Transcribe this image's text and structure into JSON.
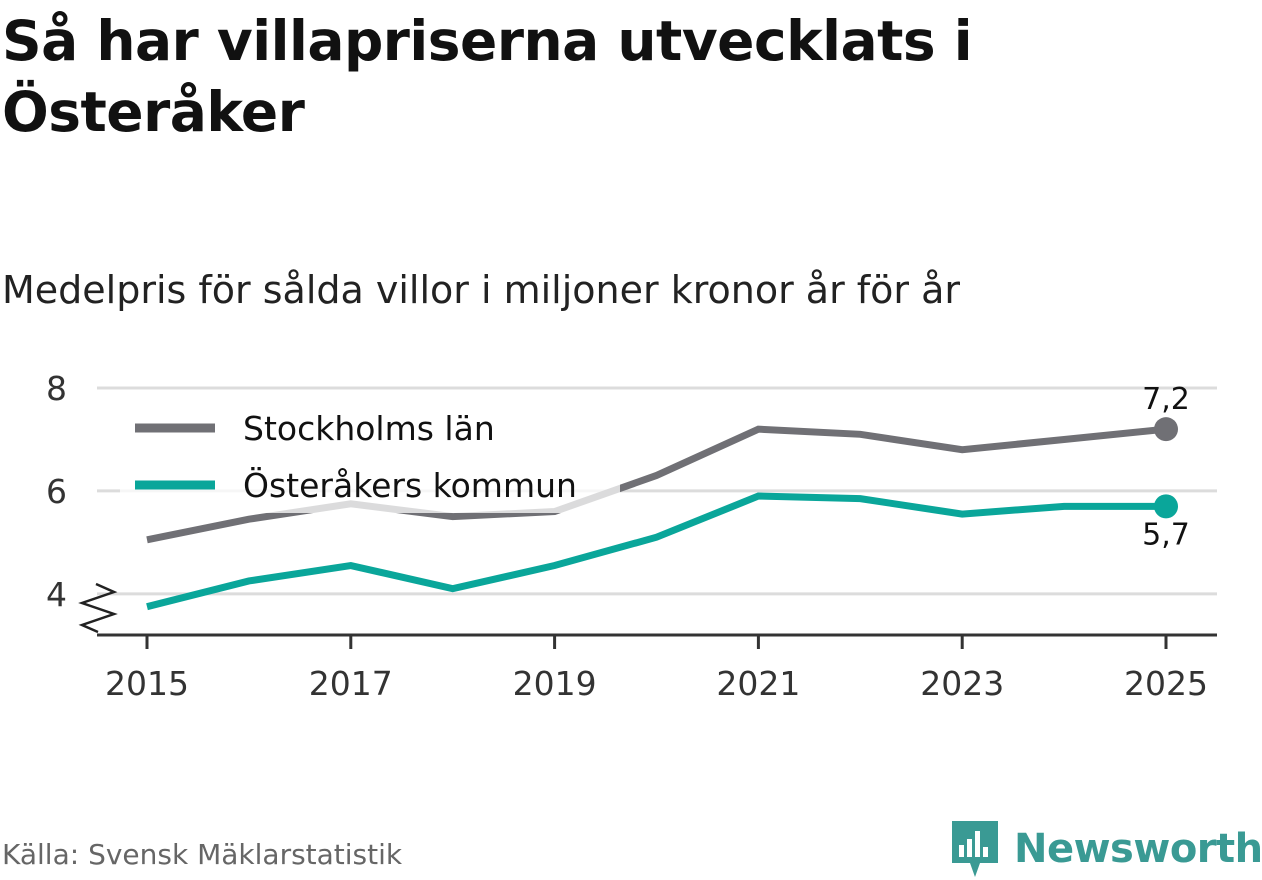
{
  "title": "Så har villapriserna utvecklats i Österåker",
  "subtitle": "Medelpris för sålda villor i miljoner kronor år för år",
  "source": "Källa: Svensk Mäklarstatistik",
  "brand": {
    "name": "Newsworthy",
    "icon": "newsworthy-logo-icon",
    "color": "#3a9a94"
  },
  "chart_data": {
    "type": "line",
    "x": [
      2015,
      2016,
      2017,
      2018,
      2019,
      2020,
      2021,
      2022,
      2023,
      2024,
      2025
    ],
    "x_ticks": [
      "2015",
      "2017",
      "2019",
      "2021",
      "2023",
      "2025"
    ],
    "y_ticks": [
      "4",
      "6",
      "8"
    ],
    "ylim": [
      3.2,
      8
    ],
    "y_axis_break": true,
    "grid": true,
    "legend_position": "top-left",
    "series": [
      {
        "name": "Stockholms län",
        "color": "#707075",
        "values": [
          5.05,
          5.45,
          5.75,
          5.5,
          5.6,
          6.3,
          7.2,
          7.1,
          6.8,
          7.0,
          7.2
        ],
        "end_label": "7,2"
      },
      {
        "name": "Österåkers kommun",
        "color": "#0aa69a",
        "values": [
          3.75,
          4.25,
          4.55,
          4.1,
          4.55,
          5.1,
          5.9,
          5.85,
          5.55,
          5.7,
          5.7
        ],
        "end_label": "5,7"
      }
    ]
  }
}
